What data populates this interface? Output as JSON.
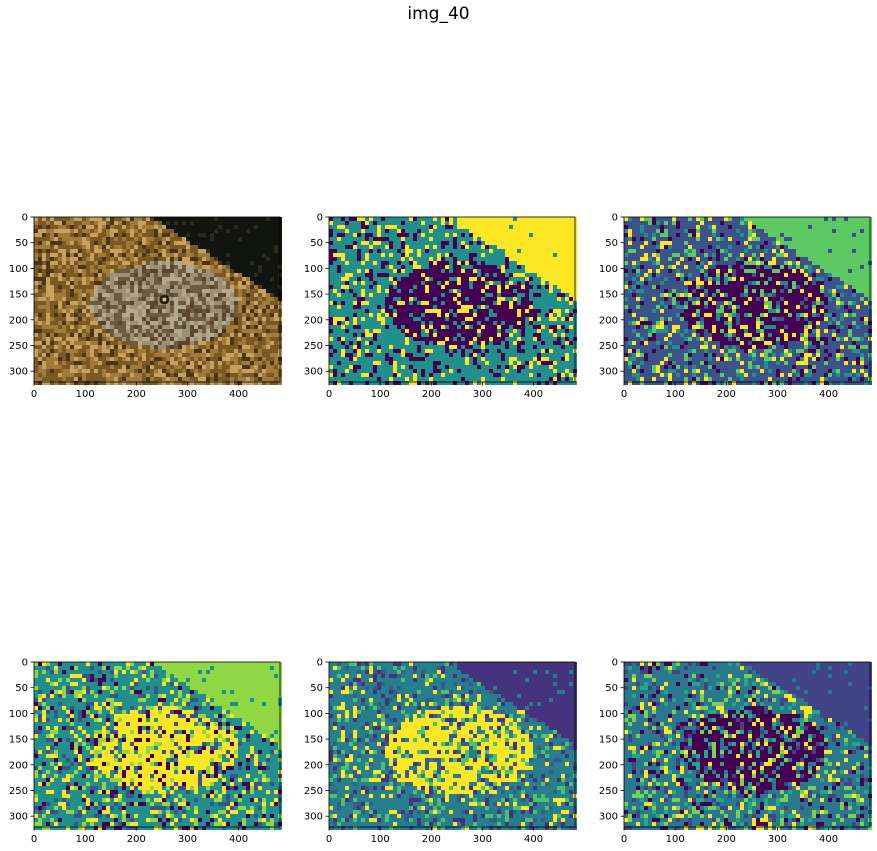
{
  "figure": {
    "suptitle": "img_40"
  },
  "chart_data": [
    {
      "type": "heatmap",
      "panel": "original-photo",
      "title": "",
      "xlabel": "",
      "ylabel": "",
      "image_size": [
        481,
        321
      ],
      "xlim": [
        0,
        481
      ],
      "ylim": [
        321,
        0
      ],
      "xticks": [
        0,
        100,
        200,
        300,
        400
      ],
      "yticks": [
        0,
        50,
        100,
        150,
        200,
        250,
        300
      ],
      "content": "color photo of a flatfish resting on sandy seabed, dark water upper right"
    },
    {
      "type": "heatmap",
      "panel": "segmentation-1",
      "title": "",
      "xlabel": "",
      "ylabel": "",
      "image_size": [
        481,
        321
      ],
      "xlim": [
        0,
        481
      ],
      "ylim": [
        321,
        0
      ],
      "xticks": [
        0,
        100,
        200,
        300,
        400
      ],
      "yticks": [
        0,
        50,
        100,
        150,
        200,
        250,
        300
      ],
      "colormap": [
        "#440154",
        "#21908d",
        "#fde725"
      ],
      "background_class_color": "#fde725",
      "fish_class_color": "#440154",
      "sand_class_color": "#21908d"
    },
    {
      "type": "heatmap",
      "panel": "segmentation-2",
      "title": "",
      "xlabel": "",
      "ylabel": "",
      "image_size": [
        481,
        321
      ],
      "xlim": [
        0,
        481
      ],
      "ylim": [
        321,
        0
      ],
      "xticks": [
        0,
        100,
        200,
        300,
        400
      ],
      "yticks": [
        0,
        50,
        100,
        150,
        200,
        250,
        300
      ],
      "colormap": [
        "#440154",
        "#3b528b",
        "#21908d",
        "#5ec962",
        "#fde725"
      ],
      "background_class_color": "#5ec962",
      "fish_class_color": "#440154",
      "sand_class_color": "#3b528b"
    },
    {
      "type": "heatmap",
      "panel": "segmentation-3",
      "title": "",
      "xlabel": "",
      "ylabel": "",
      "image_size": [
        481,
        321
      ],
      "xlim": [
        0,
        481
      ],
      "ylim": [
        321,
        0
      ],
      "xticks": [
        0,
        100,
        200,
        300,
        400
      ],
      "yticks": [
        0,
        50,
        100,
        150,
        200,
        250,
        300
      ],
      "colormap": [
        "#440154",
        "#3b528b",
        "#21908d",
        "#8fd744",
        "#fde725"
      ],
      "background_class_color": "#8fd744",
      "fish_class_color": "#fde725",
      "sand_class_color": "#21908d"
    },
    {
      "type": "heatmap",
      "panel": "segmentation-4",
      "title": "",
      "xlabel": "",
      "ylabel": "",
      "image_size": [
        481,
        321
      ],
      "xlim": [
        0,
        481
      ],
      "ylim": [
        321,
        0
      ],
      "xticks": [
        0,
        100,
        200,
        300,
        400
      ],
      "yticks": [
        0,
        50,
        100,
        150,
        200,
        250,
        300
      ],
      "colormap": [
        "#46337e",
        "#365c8d",
        "#277f8e",
        "#4ac16d",
        "#fde725"
      ],
      "background_class_color": "#46337e",
      "fish_class_color": "#fde725",
      "sand_class_color": "#277f8e"
    },
    {
      "type": "heatmap",
      "panel": "segmentation-5",
      "title": "",
      "xlabel": "",
      "ylabel": "",
      "image_size": [
        481,
        321
      ],
      "xlim": [
        0,
        481
      ],
      "ylim": [
        321,
        0
      ],
      "xticks": [
        0,
        100,
        200,
        300,
        400
      ],
      "yticks": [
        0,
        50,
        100,
        150,
        200,
        250,
        300
      ],
      "colormap": [
        "#440154",
        "#414487",
        "#2a788e",
        "#22a884",
        "#7ad151",
        "#fde725"
      ],
      "background_class_color": "#414487",
      "fish_class_color": "#440154",
      "sand_class_color": "#2a788e"
    }
  ]
}
